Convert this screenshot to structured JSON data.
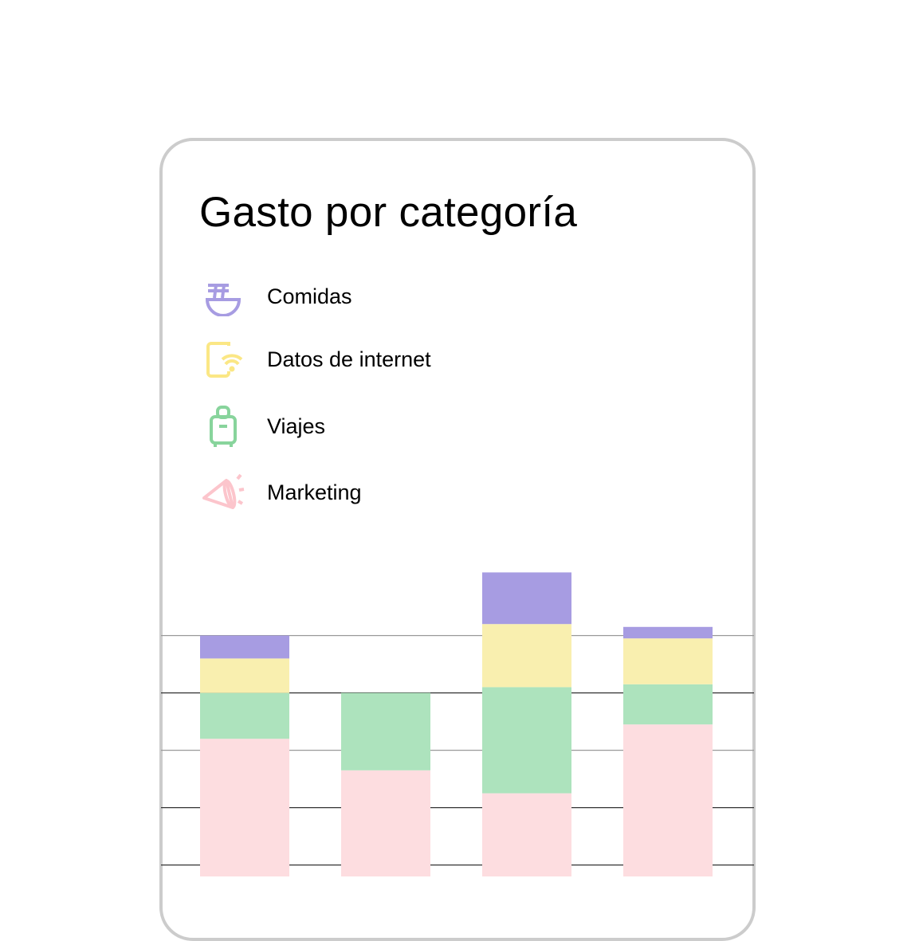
{
  "chart_data": {
    "type": "bar",
    "stacked": true,
    "title": "Gasto por categoría",
    "categories": [
      "",
      "",
      "",
      ""
    ],
    "series": [
      {
        "name": "Marketing",
        "color": "#fddde0",
        "icon": "megaphone-icon",
        "values": [
          2.4,
          1.85,
          1.45,
          2.65
        ]
      },
      {
        "name": "Viajes",
        "color": "#ade3bd",
        "icon": "suitcase-icon",
        "values": [
          0.8,
          1.35,
          1.85,
          0.7
        ]
      },
      {
        "name": "Datos de internet",
        "color": "#f9efaf",
        "icon": "phone-wifi-icon",
        "values": [
          0.6,
          0,
          1.1,
          0.8
        ]
      },
      {
        "name": "Comidas",
        "color": "#a79ce2",
        "icon": "bowl-noodles-icon",
        "values": [
          0.4,
          0,
          0.9,
          0.2
        ]
      }
    ],
    "ylim": [
      0,
      5.4
    ],
    "grid": true,
    "legend_position": "top-left",
    "xlabel": "",
    "ylabel": ""
  }
}
